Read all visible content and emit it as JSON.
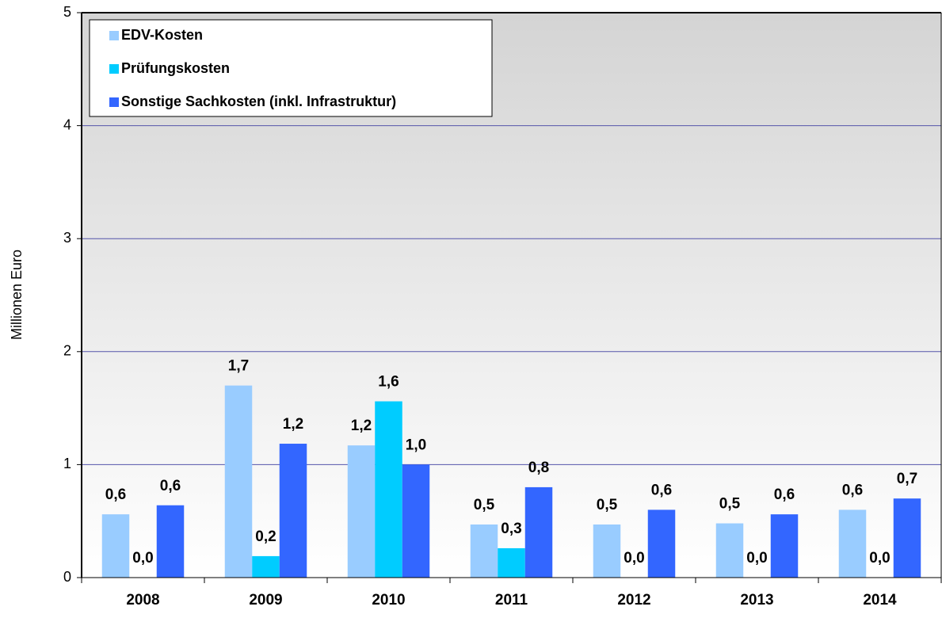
{
  "chart_data": {
    "type": "bar",
    "y_axis_label": "Millionen Euro",
    "categories": [
      "2008",
      "2009",
      "2010",
      "2011",
      "2012",
      "2013",
      "2014"
    ],
    "series": [
      {
        "name": "EDV-Kosten",
        "color": "#99ccff",
        "values": [
          0.56,
          1.7,
          1.17,
          0.47,
          0.47,
          0.48,
          0.6
        ],
        "value_labels": [
          "0,6",
          "1,7",
          "1,2",
          "0,5",
          "0,5",
          "0,5",
          "0,6"
        ]
      },
      {
        "name": "Prüfungskosten",
        "color": "#00ccff",
        "values": [
          0,
          0.19,
          1.56,
          0.26,
          0,
          0,
          0
        ],
        "value_labels": [
          "0,0",
          "0,2",
          "1,6",
          "0,3",
          "0,0",
          "0,0",
          "0,0"
        ]
      },
      {
        "name": "Sonstige Sachkosten (inkl. Infrastruktur)",
        "color": "#3366ff",
        "values": [
          0.64,
          1.185,
          1.0,
          0.8,
          0.6,
          0.56,
          0.7
        ],
        "value_labels": [
          "0,6",
          "1,2",
          "1,0",
          "0,8",
          "0,6",
          "0,6",
          "0,7"
        ]
      }
    ],
    "ylim": [
      0,
      5
    ],
    "yticks": [
      0,
      1,
      2,
      3,
      4,
      5
    ],
    "grid": true,
    "legend": "top-left"
  }
}
